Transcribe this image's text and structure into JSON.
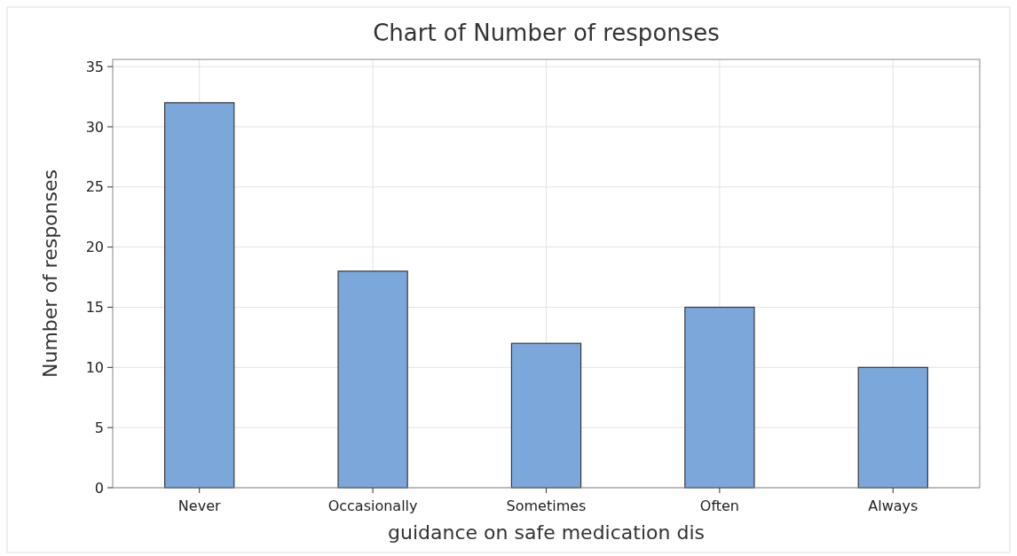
{
  "chart_data": {
    "type": "bar",
    "title": "Chart of Number of responses",
    "xlabel": "guidance on safe medication dis",
    "ylabel": "Number of responses",
    "categories": [
      "Never",
      "Occasionally",
      "Sometimes",
      "Often",
      "Always"
    ],
    "values": [
      32,
      18,
      12,
      15,
      10
    ],
    "color": "#7ba7db",
    "ylim": [
      0,
      35.6
    ],
    "yticks": [
      0,
      5,
      10,
      15,
      20,
      25,
      30,
      35
    ],
    "grid": true
  }
}
